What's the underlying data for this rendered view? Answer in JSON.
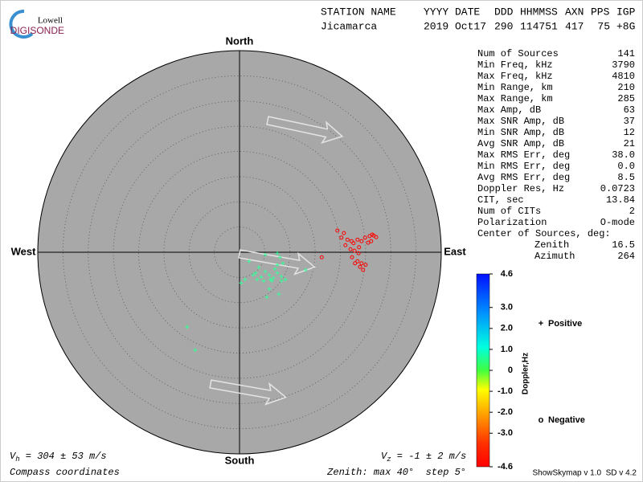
{
  "logo": {
    "top": "Lowell",
    "bottom": "DIGISONDE"
  },
  "header": {
    "labels": [
      "STATION NAME",
      "YYYY DATE",
      "DDD",
      "HHMMSS",
      "AXN",
      "PPS",
      "IGP"
    ],
    "values": [
      "Jicamarca",
      "2019 Oct17",
      "290",
      "114751",
      "417",
      "75",
      "+8G"
    ]
  },
  "stats": [
    [
      "Num of Sources",
      "141"
    ],
    [
      "Min Freq, kHz",
      "3790"
    ],
    [
      "Max Freq, kHz",
      "4810"
    ],
    [
      "Min Range, km",
      "210"
    ],
    [
      "Max Range, km",
      "285"
    ],
    [
      "Max Amp, dB",
      "63"
    ],
    [
      "Max SNR Amp, dB",
      "37"
    ],
    [
      "Min SNR Amp, dB",
      "12"
    ],
    [
      "Avg SNR Amp, dB",
      "21"
    ],
    [
      "Max RMS Err, deg",
      "38.0"
    ],
    [
      "Min RMS Err, deg",
      "0.0"
    ],
    [
      "Avg RMS Err, deg",
      "8.5"
    ],
    [
      "Doppler Res, Hz",
      "0.0723"
    ],
    [
      "CIT, sec",
      "13.84"
    ],
    [
      "Num of CITs",
      "2"
    ],
    [
      "Polarization",
      "O-mode"
    ]
  ],
  "center": {
    "title": "Center of Sources, deg:",
    "rows": [
      [
        "Zenith",
        "16.5"
      ],
      [
        "Azimuth",
        "264"
      ]
    ]
  },
  "chart_data": {
    "type": "skymap",
    "directions": {
      "north": "North",
      "south": "South",
      "east": "East",
      "west": "West"
    },
    "rlim": [
      0,
      40
    ],
    "rticks": [
      5,
      10,
      15,
      20,
      25,
      30,
      35,
      40
    ],
    "series": [
      {
        "name": "Positive",
        "marker": "+",
        "color": "#33ff99",
        "legend_color": "#0000cc",
        "x": [
          1.9,
          3.2,
          4.3,
          5.1,
          5.9,
          6.7,
          7.5,
          8.3,
          6.4,
          4.8,
          3.5,
          1.1,
          0.3,
          7.5,
          8.6,
          8.0,
          5.9,
          8.3,
          5.4,
          7.8,
          2.7,
          7.0,
          9.1,
          3.8,
          5.1,
          7.5,
          -10.4,
          -8.8,
          13.1,
          6.1
        ],
        "values": [
          -1.8,
          -4.1,
          -4.9,
          -3.8,
          -4.5,
          -5.1,
          -4.1,
          -4.8,
          -5.7,
          -5.7,
          -5.4,
          -5.4,
          -6.1,
          -2.5,
          -2.2,
          -1.0,
          -7.3,
          -5.7,
          -8.9,
          -8.3,
          -4.5,
          -3.3,
          -5.4,
          -3.0,
          -0.5,
          -0.2,
          -14.8,
          -19.4,
          -3.5,
          -5.4
        ]
      },
      {
        "name": "Negative",
        "marker": "o",
        "color": "#ff0000",
        "legend_color": "#cc0000",
        "x": [
          19.4,
          20.7,
          20.2,
          21.4,
          22.2,
          22.6,
          23.4,
          24.2,
          24.9,
          25.8,
          26.6,
          27.1,
          26.1,
          25.5,
          22.8,
          23.6,
          22.3,
          23.4,
          24.2,
          25.0,
          24.5,
          23.9,
          22.9,
          16.3,
          22.0,
          26.3,
          21.0,
          23.7
        ],
        "values": [
          4.3,
          3.8,
          2.9,
          2.5,
          2.2,
          1.8,
          2.5,
          2.2,
          2.9,
          3.2,
          3.3,
          3.0,
          2.2,
          1.9,
          0.3,
          -0.2,
          -1.0,
          -1.8,
          -2.2,
          -2.5,
          -3.5,
          -2.9,
          -2.2,
          -1.0,
          0.6,
          3.5,
          1.4,
          1.0
        ]
      }
    ]
  },
  "colorbar": {
    "label": "Doppler,Hz",
    "lim": [
      -4.6,
      4.6
    ],
    "ticks": [
      {
        "value": 4.6,
        "label": "4.6"
      },
      {
        "value": 3,
        "label": "3.0"
      },
      {
        "value": 2,
        "label": "2.0"
      },
      {
        "value": 1,
        "label": "1.0"
      },
      0,
      {
        "value": -1,
        "label": "-1.0"
      },
      {
        "value": -2,
        "label": "-2.0"
      },
      {
        "value": -3,
        "label": "-3.0"
      },
      {
        "value": -4.6,
        "label": "-4.6"
      }
    ]
  },
  "footer": {
    "vh": {
      "symbol": "V",
      "sub": "h",
      "text": " = 304 ± 53 m/s"
    },
    "vz": {
      "symbol": "V",
      "sub": "z",
      "text": " = -1 ± 2 m/s"
    },
    "coords": "Compass coordinates",
    "zenith": "Zenith: max 40°  step 5°",
    "version": "ShowSkymap v 1.0  SD v 4.2"
  }
}
